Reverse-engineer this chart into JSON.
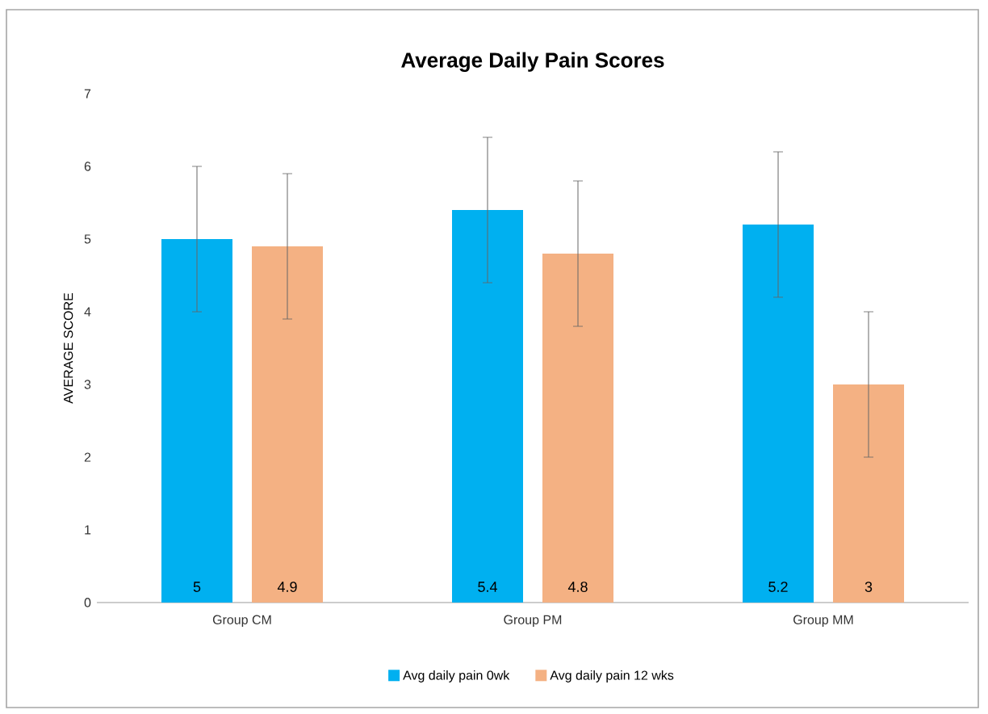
{
  "chart_data": {
    "type": "bar",
    "title": "Average Daily Pain Scores",
    "ylabel": "AVERAGE SCORE",
    "categories": [
      "Group CM",
      "Group PM",
      "Group MM"
    ],
    "series": [
      {
        "name": "Avg daily pain 0wk",
        "color": "#00b0f0",
        "values": [
          5,
          5.4,
          5.2
        ],
        "errors": [
          1,
          1,
          1
        ]
      },
      {
        "name": "Avg daily pain 12 wks",
        "color": "#f4b183",
        "values": [
          4.9,
          4.8,
          3
        ],
        "errors": [
          1,
          1,
          1
        ]
      }
    ],
    "ylim": [
      0,
      7
    ],
    "yticks": [
      0,
      1,
      2,
      3,
      4,
      5,
      6,
      7
    ],
    "data_labels": true,
    "legend": "bottom"
  }
}
